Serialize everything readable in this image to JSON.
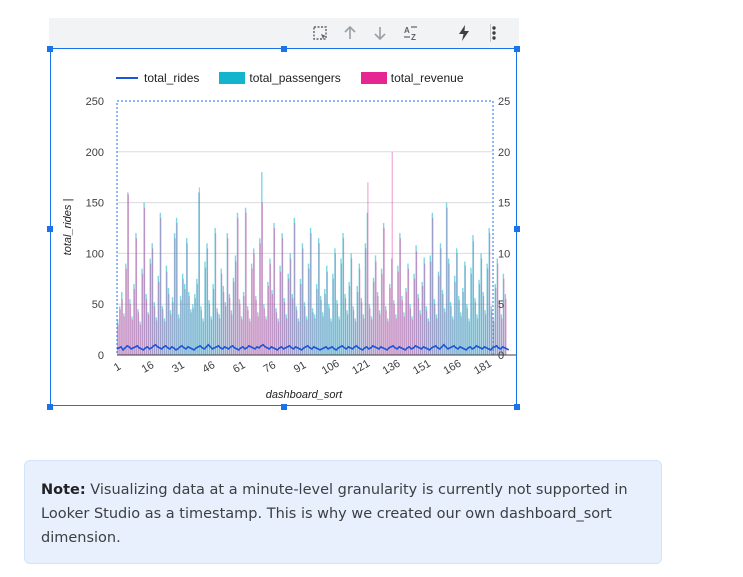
{
  "toolbar": {
    "icons": [
      "select-area-icon",
      "sort-ascending-icon",
      "sort-descending-icon",
      "sort-az-icon",
      "lightning-icon",
      "more-vert-icon"
    ]
  },
  "chart_data": {
    "type": "bar",
    "x_label": "dashboard_sort",
    "y_label_left": "total_rides |",
    "x_ticks": [
      "1",
      "16",
      "31",
      "46",
      "61",
      "76",
      "91",
      "106",
      "121",
      "136",
      "151",
      "166",
      "181"
    ],
    "y_left_ticks": [
      "0",
      "50",
      "100",
      "150",
      "200",
      "250"
    ],
    "y_right_ticks": [
      "0",
      "5",
      "10",
      "15",
      "20",
      "25"
    ],
    "y_left_range": [
      0,
      250
    ],
    "y_right_range": [
      0,
      25
    ],
    "legend_position": "top",
    "series": [
      {
        "name": "total_rides",
        "type": "line",
        "color": "#1a56db",
        "axis": "right",
        "values": [
          0.6,
          0.7,
          0.8,
          0.5,
          0.7,
          0.9,
          0.8,
          0.6,
          0.7,
          0.8,
          0.9,
          0.7,
          0.6,
          0.5,
          0.7,
          0.8,
          0.6,
          0.7,
          0.9,
          1.0,
          0.8,
          0.7,
          0.6,
          0.8,
          0.9,
          0.7,
          0.6,
          0.8,
          0.7,
          0.5,
          0.6,
          0.8,
          0.9,
          0.7,
          0.6,
          0.8,
          0.7,
          0.6,
          0.5,
          0.7,
          0.8,
          0.9,
          0.7,
          0.6,
          0.8,
          1.0,
          0.8,
          0.6,
          0.7,
          0.8,
          0.9,
          0.7,
          0.6,
          0.8,
          0.7,
          0.6,
          0.8,
          0.9,
          0.7,
          0.6,
          0.5,
          0.7,
          0.8,
          0.6,
          0.7,
          0.9,
          0.8,
          0.7,
          0.6,
          0.8,
          0.7,
          0.9,
          1.0,
          0.8,
          0.7,
          0.6,
          0.8,
          0.7,
          0.6,
          0.5,
          0.7,
          0.8,
          0.6,
          0.7,
          0.8,
          0.9,
          0.7,
          0.6,
          0.8,
          0.7,
          0.6,
          0.5,
          0.7,
          0.8,
          0.9,
          0.7,
          0.6,
          0.8,
          0.7,
          0.6,
          0.5,
          0.6,
          0.7,
          0.8,
          0.6,
          0.7,
          0.8,
          0.6,
          0.5,
          0.7,
          0.8,
          0.9,
          0.7,
          0.6,
          0.8,
          0.7,
          0.6,
          0.8,
          0.9,
          0.7,
          0.6,
          0.5,
          0.7,
          0.8,
          0.6,
          0.7,
          0.9,
          0.8,
          0.7,
          0.6,
          0.8,
          0.7,
          0.6,
          0.5,
          0.7,
          0.8,
          0.9,
          0.7,
          0.6,
          0.8,
          0.7,
          0.6,
          0.5,
          0.7,
          0.8,
          0.6,
          0.7,
          0.9,
          0.8,
          0.7,
          0.6,
          0.8,
          0.7,
          0.6,
          0.5,
          0.7,
          0.8,
          0.9,
          0.7,
          0.6,
          0.8,
          1.0,
          0.8,
          0.6,
          0.7,
          0.8,
          0.9,
          0.7,
          0.6,
          0.8,
          0.7,
          0.6,
          0.5,
          0.7,
          0.8,
          0.6,
          0.7,
          0.9,
          0.8,
          0.7,
          0.6,
          0.8,
          0.7,
          0.6,
          0.5,
          0.7,
          0.8,
          0.9,
          0.7,
          0.6,
          0.8,
          0.7,
          0.6,
          0.5
        ]
      },
      {
        "name": "total_passengers",
        "type": "bar",
        "color": "#12b5cb",
        "axis": "left",
        "values": [
          35,
          48,
          62,
          41,
          90,
          160,
          55,
          38,
          70,
          120,
          45,
          33,
          85,
          150,
          60,
          42,
          95,
          110,
          52,
          37,
          78,
          140,
          48,
          36,
          88,
          66,
          44,
          57,
          120,
          135,
          40,
          58,
          80,
          70,
          115,
          62,
          45,
          50,
          60,
          75,
          160,
          48,
          36,
          92,
          110,
          54,
          38,
          70,
          125,
          46,
          40,
          85,
          68,
          52,
          120,
          60,
          44,
          76,
          98,
          140,
          55,
          38,
          62,
          145,
          48,
          36,
          90,
          105,
          58,
          42,
          115,
          180,
          50,
          38,
          72,
          95,
          64,
          130,
          46,
          36,
          88,
          120,
          56,
          40,
          80,
          100,
          60,
          135,
          48,
          36,
          75,
          110,
          52,
          38,
          90,
          125,
          46,
          40,
          70,
          115,
          58,
          42,
          65,
          88,
          50,
          36,
          80,
          105,
          54,
          38,
          95,
          120,
          60,
          44,
          72,
          100,
          48,
          36,
          68,
          90,
          56,
          40,
          110,
          140,
          50,
          38,
          76,
          98,
          62,
          44,
          85,
          130,
          48,
          36,
          70,
          95,
          54,
          40,
          88,
          120,
          58,
          42,
          66,
          90,
          50,
          38,
          80,
          108,
          60,
          44,
          72,
          96,
          48,
          36,
          98,
          140,
          55,
          40,
          82,
          110,
          64,
          46,
          150,
          95,
          52,
          38,
          78,
          105,
          58,
          42,
          66,
          92,
          50,
          36,
          86,
          118,
          56,
          40,
          74,
          100,
          62,
          44,
          90,
          125,
          48,
          36,
          70,
          95,
          54,
          40,
          80,
          60
        ]
      },
      {
        "name": "total_revenue",
        "type": "bar",
        "color": "#e52592",
        "axis": "left",
        "values": [
          30,
          45,
          55,
          38,
          85,
          158,
          50,
          35,
          65,
          115,
          42,
          30,
          80,
          145,
          55,
          40,
          90,
          105,
          48,
          34,
          72,
          135,
          45,
          33,
          82,
          60,
          40,
          52,
          115,
          130,
          36,
          54,
          75,
          65,
          110,
          58,
          42,
          46,
          56,
          70,
          165,
          44,
          33,
          86,
          105,
          50,
          35,
          65,
          120,
          42,
          36,
          80,
          62,
          48,
          115,
          56,
          40,
          72,
          92,
          135,
          50,
          35,
          58,
          140,
          44,
          33,
          85,
          100,
          54,
          38,
          110,
          150,
          46,
          35,
          68,
          90,
          60,
          125,
          42,
          33,
          82,
          115,
          52,
          36,
          75,
          95,
          56,
          130,
          44,
          33,
          70,
          105,
          48,
          35,
          85,
          120,
          42,
          36,
          65,
          110,
          54,
          38,
          60,
          82,
          46,
          33,
          75,
          100,
          50,
          35,
          90,
          115,
          56,
          40,
          68,
          95,
          44,
          33,
          62,
          85,
          52,
          36,
          105,
          170,
          46,
          35,
          72,
          92,
          58,
          40,
          80,
          125,
          44,
          33,
          66,
          200,
          50,
          36,
          82,
          115,
          54,
          38,
          62,
          85,
          46,
          35,
          75,
          102,
          56,
          40,
          68,
          90,
          44,
          33,
          92,
          135,
          50,
          36,
          78,
          105,
          60,
          42,
          145,
          90,
          48,
          35,
          72,
          100,
          54,
          38,
          62,
          88,
          46,
          33,
          80,
          112,
          52,
          36,
          70,
          95,
          58,
          40,
          85,
          120,
          44,
          33,
          66,
          90,
          50,
          36,
          75,
          55
        ]
      }
    ]
  },
  "note": {
    "label": "Note:",
    "text": " Visualizing data at a minute-level granularity is currently not supported in Looker Studio as a timestamp. This is why we created our own dashboard_sort dimension."
  }
}
